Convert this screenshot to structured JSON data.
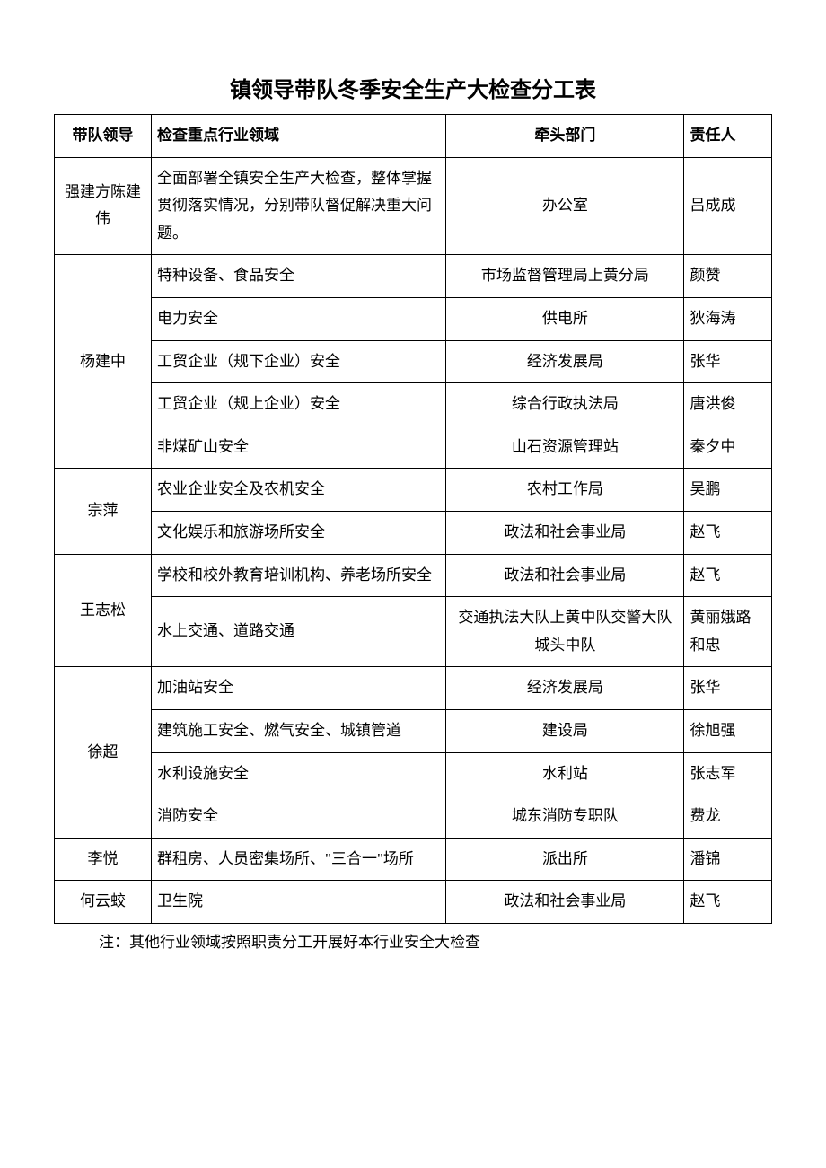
{
  "title": "镇领导带队冬季安全生产大检查分工表",
  "headers": {
    "leader": "带队领导",
    "area": "检查重点行业领域",
    "dept": "牵头部门",
    "person": "责任人"
  },
  "groups": [
    {
      "leader": "强建方陈建伟",
      "rows": [
        {
          "area": "全面部署全镇安全生产大检查，整体掌握贯彻落实情况，分别带队督促解决重大问题。",
          "dept": "办公室",
          "person": "吕成成"
        }
      ]
    },
    {
      "leader": "杨建中",
      "rows": [
        {
          "area": "特种设备、食品安全",
          "dept": "市场监督管理局上黄分局",
          "person": "颜赞"
        },
        {
          "area": "电力安全",
          "dept": "供电所",
          "person": "狄海涛"
        },
        {
          "area": "工贸企业（规下企业）安全",
          "dept": "经济发展局",
          "person": "张华"
        },
        {
          "area": "工贸企业（规上企业）安全",
          "dept": "综合行政执法局",
          "person": "唐洪俊"
        },
        {
          "area": "非煤矿山安全",
          "dept": "山石资源管理站",
          "person": "秦夕中"
        }
      ]
    },
    {
      "leader": "宗萍",
      "rows": [
        {
          "area": "农业企业安全及农机安全",
          "dept": "农村工作局",
          "person": "吴鹏"
        },
        {
          "area": "文化娱乐和旅游场所安全",
          "dept": "政法和社会事业局",
          "person": "赵飞"
        }
      ]
    },
    {
      "leader": "王志松",
      "rows": [
        {
          "area": "学校和校外教育培训机构、养老场所安全",
          "dept": "政法和社会事业局",
          "person": "赵飞"
        },
        {
          "area": "水上交通、道路交通",
          "dept": "交通执法大队上黄中队交警大队城头中队",
          "person": "黄丽娥路和忠"
        }
      ]
    },
    {
      "leader": "徐超",
      "rows": [
        {
          "area": "加油站安全",
          "dept": "经济发展局",
          "person": "张华"
        },
        {
          "area": "建筑施工安全、燃气安全、城镇管道",
          "dept": "建设局",
          "person": "徐旭强"
        },
        {
          "area": "水利设施安全",
          "dept": "水利站",
          "person": "张志军"
        },
        {
          "area": "消防安全",
          "dept": "城东消防专职队",
          "person": "费龙"
        }
      ]
    },
    {
      "leader": "李悦",
      "rows": [
        {
          "area": "群租房、人员密集场所、\"三合一\"场所",
          "dept": "派出所",
          "person": "潘锦"
        }
      ]
    },
    {
      "leader": "何云蛟",
      "rows": [
        {
          "area": "卫生院",
          "dept": "政法和社会事业局",
          "person": "赵飞"
        }
      ]
    }
  ],
  "note": "注：其他行业领域按照职责分工开展好本行业安全大检查",
  "style": {
    "border_color": "#000000",
    "background_color": "#ffffff",
    "title_fontsize": 24,
    "body_fontsize": 17
  }
}
